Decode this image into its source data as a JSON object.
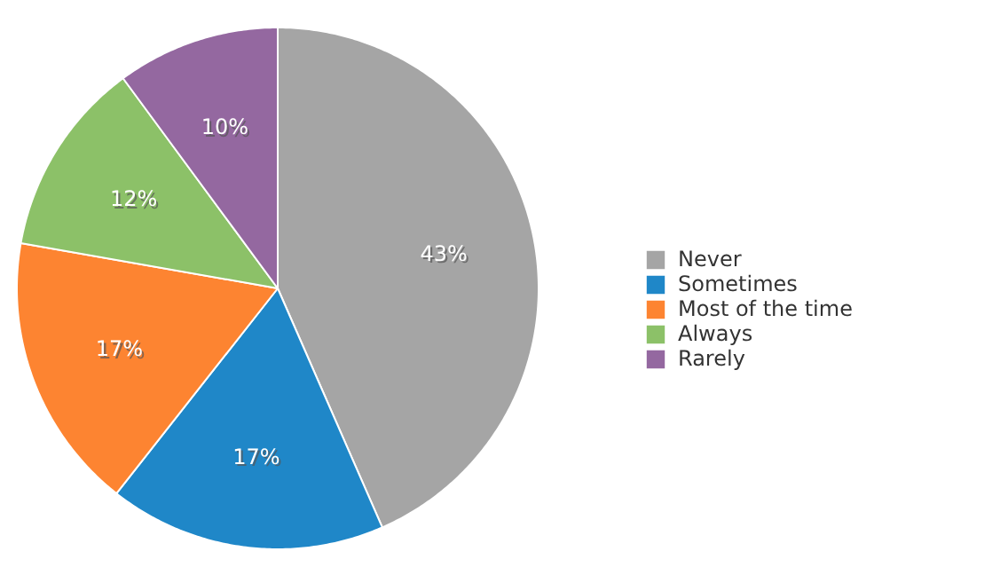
{
  "chart_data": {
    "type": "pie",
    "categories": [
      "Never",
      "Sometimes",
      "Most of the time",
      "Always",
      "Rarely"
    ],
    "values": [
      43,
      17,
      17,
      12,
      10
    ],
    "colors": [
      "#a5a5a5",
      "#1f87c8",
      "#fd8431",
      "#8cc168",
      "#9468a0"
    ],
    "value_labels": [
      "43%",
      "17%",
      "17%",
      "12%",
      "10%"
    ],
    "legend": "right"
  }
}
